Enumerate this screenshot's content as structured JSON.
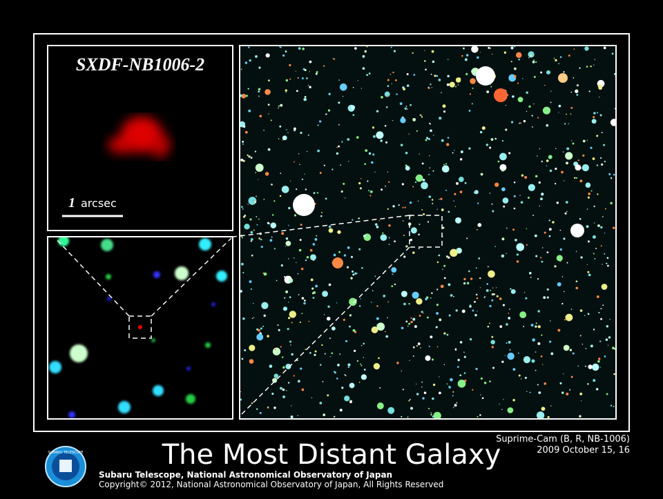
{
  "inset_title": "SXDF-NB1006-2",
  "scale_bar": {
    "number": "1",
    "unit": "arcsec"
  },
  "title": "The Most Distant Galaxy",
  "instrument": "Suprime-Cam (B, R, NB-1006)",
  "date": "2009 October 15, 16",
  "credit": "Subaru Telescope, National Astronomical Observatory of Japan",
  "copyright": "Copyright© 2012, National Astronomical Observatory of Japan, All Rights Reserved",
  "logo_text": "SUBARU TELESCOPE"
}
